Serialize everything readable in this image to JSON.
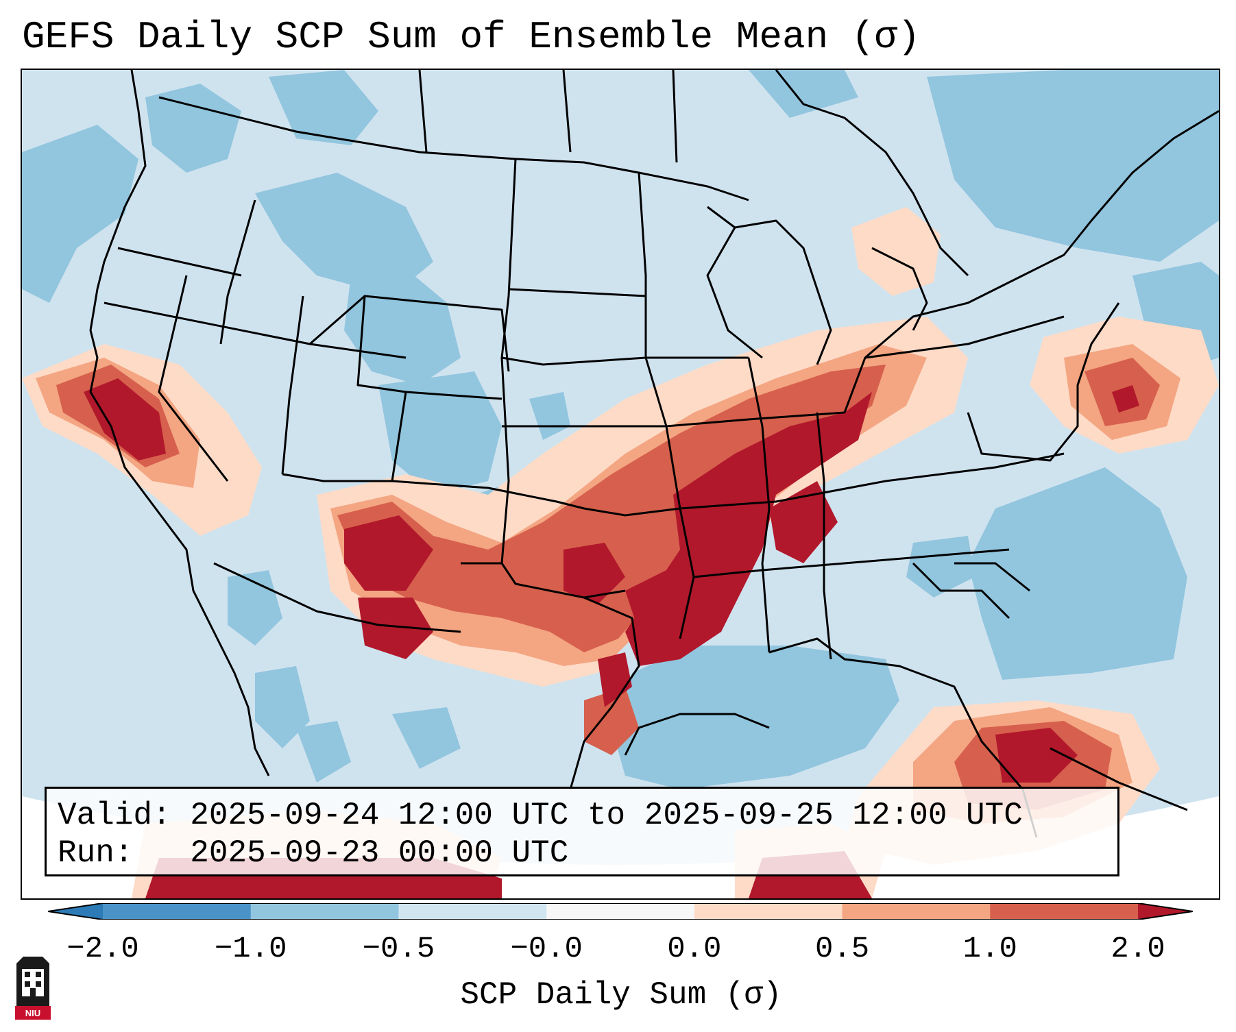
{
  "title": "GEFS Daily SCP Sum of Ensemble Mean (σ)",
  "valid_box": {
    "valid_label": "Valid:",
    "valid_value": "2025-09-24 12:00 UTC to 2025-09-25 12:00 UTC",
    "run_label": "Run:",
    "run_value": "2025-09-23 00:00 UTC"
  },
  "colorbar": {
    "label": "SCP Daily Sum (σ)",
    "ticks": [
      "−2.0",
      "−1.0",
      "−0.5",
      "−0.0",
      "0.0",
      "0.5",
      "1.0",
      "2.0"
    ],
    "colors": [
      "#2c7bb6",
      "#4a93c8",
      "#92c5de",
      "#d1e5f0",
      "#f7f7f7",
      "#fddbc7",
      "#f4a582",
      "#d6604d",
      "#b2182b"
    ]
  },
  "logo": {
    "name": "niu-logo",
    "text": "NIU"
  },
  "map": {
    "projection": "lambert-conformal",
    "region": "CONUS",
    "background_color": "#cfe3ef"
  }
}
